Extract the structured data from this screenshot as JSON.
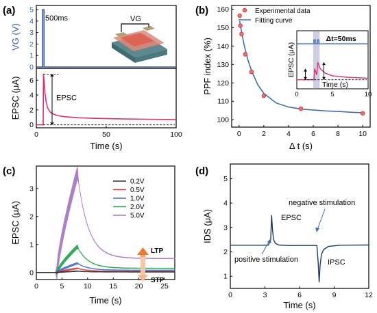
{
  "chart_data": [
    {
      "panel": "(a)",
      "type": "line",
      "x_ticks": [
        "0",
        "50",
        "100"
      ],
      "xlabel": "Time (s)",
      "xlim": [
        0,
        100
      ],
      "top": {
        "ylabel": "VG (V)",
        "y_ticks": [
          "0",
          "1",
          "2",
          "3",
          "4",
          "5"
        ],
        "ylim": [
          0,
          5.3
        ],
        "pulse": {
          "t": 5,
          "height": 5
        },
        "annotation": "500ms",
        "inset_label": "VG"
      },
      "bottom": {
        "ylabel": "EPSC (μA)",
        "y_ticks": [
          "0",
          "2",
          "4",
          "6"
        ],
        "ylim": [
          -0.4,
          7.4
        ],
        "annotation": "EPSC",
        "series": [
          {
            "x": [
              0,
              4.9,
              5.1,
              5.6,
              6.2,
              7,
              8,
              10,
              12,
              15,
              20,
              30,
              40,
              60,
              80,
              100
            ],
            "y": [
              0,
              0,
              6.8,
              5.7,
              4.3,
              3.1,
              2.3,
              1.7,
              1.45,
              1.25,
              1.1,
              0.95,
              0.88,
              0.8,
              0.75,
              0.7
            ]
          }
        ]
      }
    },
    {
      "panel": "(b)",
      "type": "scatter",
      "xlabel": "Δ t (s)",
      "ylabel": "PPF index (%)",
      "x_ticks": [
        "0",
        "2",
        "4",
        "6",
        "8",
        "10"
      ],
      "y_ticks": [
        "100",
        "110",
        "120",
        "130",
        "140",
        "150",
        "160"
      ],
      "xlim": [
        -0.6,
        10.6
      ],
      "ylim": [
        96,
        162
      ],
      "legend": [
        "Experimental data",
        "Fitting curve"
      ],
      "points": {
        "x": [
          0.05,
          0.1,
          0.2,
          0.5,
          1,
          2,
          5,
          10
        ],
        "y": [
          156.5,
          151,
          146.5,
          135.5,
          126,
          113,
          106,
          103.5
        ]
      },
      "fit": {
        "x": [
          0.05,
          0.2,
          0.4,
          0.7,
          1,
          1.5,
          2,
          3,
          4,
          5,
          6,
          7,
          8,
          9,
          10
        ],
        "y": [
          153.5,
          147.7,
          140.8,
          132.8,
          126.6,
          119.1,
          114.3,
          109.1,
          106.9,
          105.8,
          105.3,
          104.8,
          104.5,
          104.1,
          103.8
        ]
      },
      "inset": {
        "xlabel": "Time (s)",
        "ylabel": "EPSC (μA)",
        "x_ticks": [
          "0",
          "5",
          "10"
        ],
        "annotation": "Δt=50ms"
      }
    },
    {
      "panel": "(c)",
      "type": "line",
      "xlabel": "Time (s)",
      "ylabel": "EPSC (μA)",
      "x_ticks": [
        "0",
        "5",
        "10",
        "15",
        "20",
        "25"
      ],
      "y_ticks": [
        "0",
        "1",
        "2",
        "3"
      ],
      "xlim": [
        0,
        27
      ],
      "ylim": [
        -0.25,
        3.8
      ],
      "annotations": [
        "LTP",
        "STP"
      ],
      "series": [
        {
          "name": "0.2V",
          "color": "#2b2b2b",
          "peak": 0.05,
          "tail": 0.02
        },
        {
          "name": "0.5V",
          "color": "#e03a3a",
          "peak": 0.15,
          "tail": 0.04
        },
        {
          "name": "1.0V",
          "color": "#3c6fd8",
          "peak": 0.33,
          "tail": 0.08
        },
        {
          "name": "2.0V",
          "color": "#1fa64a",
          "peak": 0.92,
          "tail": 0.15
        },
        {
          "name": "5.0V",
          "color": "#a676c4",
          "peak": 3.55,
          "tail": 0.5
        }
      ]
    },
    {
      "panel": "(d)",
      "type": "line",
      "xlabel": "Time (s)",
      "ylabel": "IDS (μA)",
      "x_ticks": [
        "0",
        "3",
        "6",
        "9",
        "12"
      ],
      "y_ticks": [
        "1",
        "2",
        "3",
        "4",
        "5"
      ],
      "xlim": [
        0,
        12
      ],
      "ylim": [
        0.5,
        5.6
      ],
      "annotations": [
        "EPSC",
        "IPSC",
        "positive stimulation",
        "negative stimulation"
      ],
      "series": [
        {
          "x": [
            0,
            3.3,
            3.5,
            3.58,
            3.65,
            3.75,
            3.9,
            4.2,
            5,
            6,
            7.5,
            7.62,
            7.7,
            7.78,
            7.9,
            8.1,
            8.5,
            9.5,
            12
          ],
          "y": [
            2.27,
            2.27,
            2.5,
            3.5,
            2.95,
            2.5,
            2.35,
            2.28,
            2.26,
            2.26,
            2.26,
            1.5,
            0.75,
            1.45,
            1.9,
            2.1,
            2.22,
            2.27,
            2.28
          ]
        }
      ]
    }
  ]
}
